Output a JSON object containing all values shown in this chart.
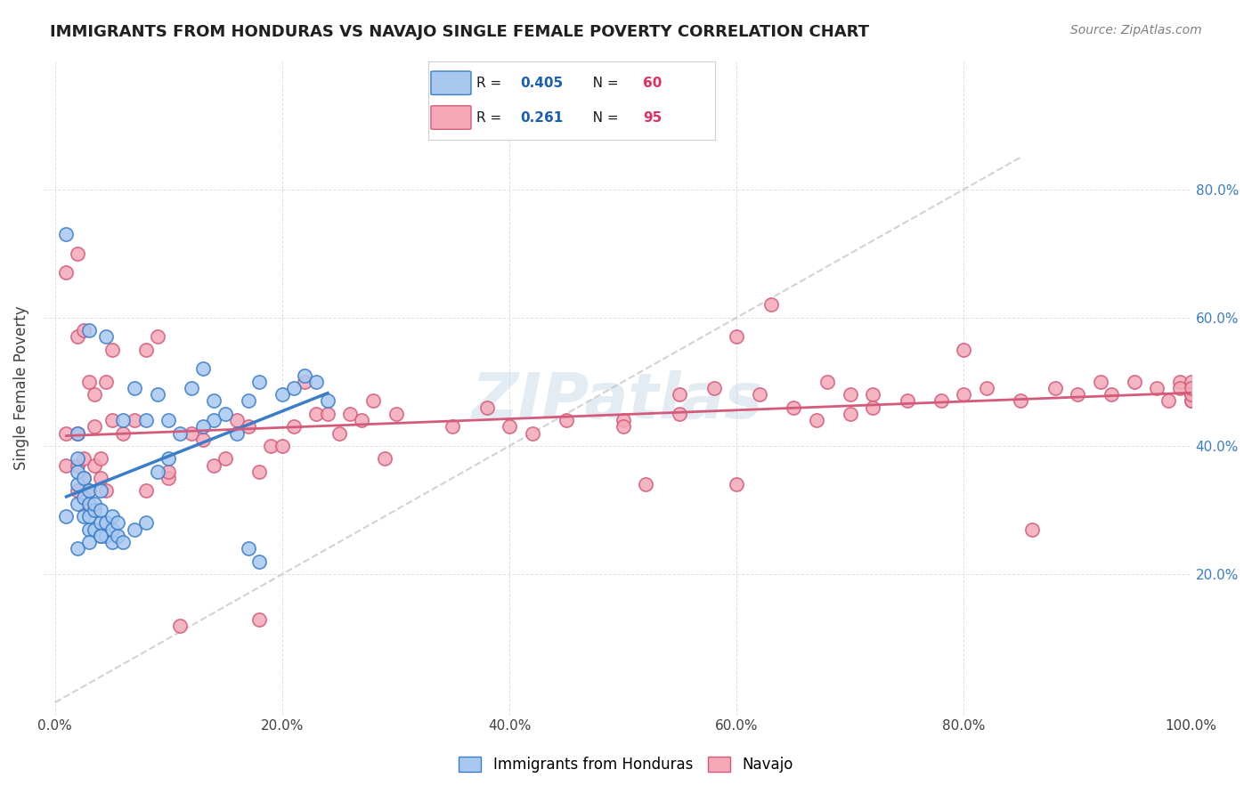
{
  "title": "IMMIGRANTS FROM HONDURAS VS NAVAJO SINGLE FEMALE POVERTY CORRELATION CHART",
  "source": "Source: ZipAtlas.com",
  "xlabel": "",
  "ylabel": "Single Female Poverty",
  "xlim": [
    0.0,
    1.0
  ],
  "ylim": [
    0.0,
    1.0
  ],
  "xticks": [
    0.0,
    0.2,
    0.4,
    0.6,
    0.8,
    1.0
  ],
  "yticks": [
    0.2,
    0.4,
    0.6,
    0.8
  ],
  "xticklabels": [
    "0.0%",
    "20.0%",
    "40.0%",
    "60.0%",
    "80.0%",
    "100.0%"
  ],
  "yticklabels_right": [
    "20.0%",
    "40.0%",
    "60.0%",
    "80.0%"
  ],
  "blue_R": 0.405,
  "blue_N": 60,
  "pink_R": 0.261,
  "pink_N": 95,
  "blue_color": "#a8c8f0",
  "pink_color": "#f4a8b8",
  "blue_line_color": "#3a7dc9",
  "pink_line_color": "#d45a7a",
  "diagonal_color": "#c0c0c0",
  "watermark": "ZIPatlas",
  "watermark_color": "#c8d8e8",
  "background_color": "#ffffff",
  "grid_color": "#d8d8e8",
  "title_color": "#202020",
  "source_color": "#808080",
  "legend_R_color": "#1a5fb4",
  "legend_N_color": "#e03060",
  "blue_scatter_x": [
    0.01,
    0.02,
    0.02,
    0.02,
    0.02,
    0.02,
    0.025,
    0.025,
    0.025,
    0.03,
    0.03,
    0.03,
    0.03,
    0.03,
    0.035,
    0.035,
    0.035,
    0.04,
    0.04,
    0.04,
    0.04,
    0.045,
    0.045,
    0.045,
    0.05,
    0.05,
    0.05,
    0.055,
    0.055,
    0.06,
    0.06,
    0.07,
    0.07,
    0.08,
    0.08,
    0.09,
    0.1,
    0.12,
    0.13,
    0.14,
    0.14,
    0.15,
    0.16,
    0.17,
    0.18,
    0.2,
    0.21,
    0.22,
    0.23,
    0.09,
    0.1,
    0.11,
    0.13,
    0.17,
    0.18,
    0.24,
    0.01,
    0.02,
    0.03,
    0.04
  ],
  "blue_scatter_y": [
    0.29,
    0.31,
    0.34,
    0.36,
    0.38,
    0.42,
    0.29,
    0.32,
    0.35,
    0.27,
    0.29,
    0.31,
    0.33,
    0.58,
    0.27,
    0.3,
    0.31,
    0.26,
    0.28,
    0.3,
    0.33,
    0.26,
    0.28,
    0.57,
    0.25,
    0.27,
    0.29,
    0.26,
    0.28,
    0.25,
    0.44,
    0.27,
    0.49,
    0.28,
    0.44,
    0.48,
    0.44,
    0.49,
    0.52,
    0.44,
    0.47,
    0.45,
    0.42,
    0.47,
    0.5,
    0.48,
    0.49,
    0.51,
    0.5,
    0.36,
    0.38,
    0.42,
    0.43,
    0.24,
    0.22,
    0.47,
    0.73,
    0.24,
    0.25,
    0.26
  ],
  "pink_scatter_x": [
    0.01,
    0.01,
    0.01,
    0.02,
    0.02,
    0.02,
    0.02,
    0.02,
    0.025,
    0.025,
    0.025,
    0.03,
    0.03,
    0.03,
    0.035,
    0.035,
    0.035,
    0.04,
    0.04,
    0.045,
    0.045,
    0.05,
    0.05,
    0.06,
    0.07,
    0.08,
    0.08,
    0.09,
    0.1,
    0.1,
    0.11,
    0.12,
    0.13,
    0.14,
    0.15,
    0.16,
    0.17,
    0.18,
    0.18,
    0.19,
    0.2,
    0.21,
    0.22,
    0.23,
    0.24,
    0.25,
    0.26,
    0.27,
    0.28,
    0.29,
    0.3,
    0.35,
    0.38,
    0.4,
    0.42,
    0.45,
    0.5,
    0.55,
    0.58,
    0.6,
    0.62,
    0.65,
    0.68,
    0.7,
    0.72,
    0.75,
    0.78,
    0.8,
    0.82,
    0.85,
    0.88,
    0.9,
    0.92,
    0.93,
    0.95,
    0.97,
    0.98,
    0.99,
    0.99,
    1.0,
    1.0,
    1.0,
    1.0,
    1.0,
    1.0,
    0.5,
    0.6,
    0.7,
    0.52,
    0.55,
    0.63,
    0.67,
    0.72,
    0.8,
    0.86
  ],
  "pink_scatter_y": [
    0.37,
    0.42,
    0.67,
    0.33,
    0.37,
    0.42,
    0.57,
    0.7,
    0.35,
    0.38,
    0.58,
    0.3,
    0.33,
    0.5,
    0.37,
    0.43,
    0.48,
    0.35,
    0.38,
    0.33,
    0.5,
    0.44,
    0.55,
    0.42,
    0.44,
    0.33,
    0.55,
    0.57,
    0.35,
    0.36,
    0.12,
    0.42,
    0.41,
    0.37,
    0.38,
    0.44,
    0.43,
    0.13,
    0.36,
    0.4,
    0.4,
    0.43,
    0.5,
    0.45,
    0.45,
    0.42,
    0.45,
    0.44,
    0.47,
    0.38,
    0.45,
    0.43,
    0.46,
    0.43,
    0.42,
    0.44,
    0.44,
    0.48,
    0.49,
    0.57,
    0.48,
    0.46,
    0.5,
    0.48,
    0.48,
    0.47,
    0.47,
    0.48,
    0.49,
    0.47,
    0.49,
    0.48,
    0.5,
    0.48,
    0.5,
    0.49,
    0.47,
    0.5,
    0.49,
    0.5,
    0.48,
    0.47,
    0.47,
    0.48,
    0.49,
    0.43,
    0.34,
    0.45,
    0.34,
    0.45,
    0.62,
    0.44,
    0.46,
    0.55,
    0.27
  ]
}
